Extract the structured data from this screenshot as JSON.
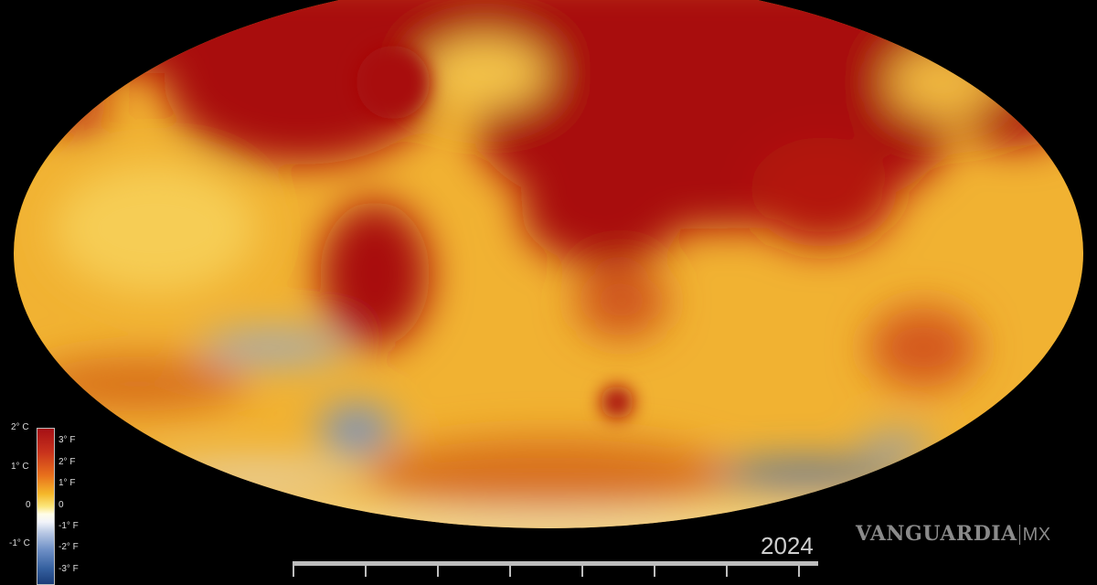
{
  "map": {
    "projection": "robinson",
    "subject": "global temperature anomaly",
    "colors": {
      "hot": "#a30d0d",
      "warm": "#e8891e",
      "mild": "#f6c33a",
      "neutral": "#fff5d0",
      "cool": "#6f90c8"
    }
  },
  "legend": {
    "celsius_labels": [
      "2° C",
      "1° C",
      "0",
      "-1° C"
    ],
    "fahrenheit_labels": [
      "3° F",
      "2° F",
      "1° F",
      "0",
      "-1° F",
      "-2° F",
      "-3° F"
    ]
  },
  "timeline": {
    "year": "2024"
  },
  "watermark": {
    "brand": "VANGUARDIA",
    "suffix": "MX"
  }
}
